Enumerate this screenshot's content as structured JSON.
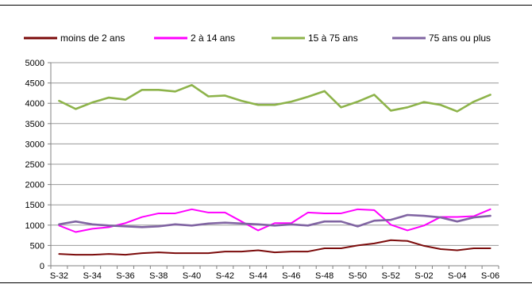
{
  "chart_data": {
    "type": "line",
    "x": [
      "S-32",
      "S-33",
      "S-34",
      "S-35",
      "S-36",
      "S-37",
      "S-38",
      "S-39",
      "S-40",
      "S-41",
      "S-42",
      "S-43",
      "S-44",
      "S-45",
      "S-46",
      "S-47",
      "S-48",
      "S-49",
      "S-50",
      "S-51",
      "S-52",
      "S-01",
      "S-02",
      "S-03",
      "S-04",
      "S-05",
      "S-06"
    ],
    "x_tick_labels": [
      "S-32",
      "S-34",
      "S-36",
      "S-38",
      "S-40",
      "S-42",
      "S-44",
      "S-46",
      "S-48",
      "S-50",
      "S-52",
      "S-02",
      "S-04",
      "S-06"
    ],
    "ylim": [
      0,
      5000
    ],
    "y_ticks": [
      0,
      500,
      1000,
      1500,
      2000,
      2500,
      3000,
      3500,
      4000,
      4500,
      5000
    ],
    "grid": true,
    "legend_position": "top",
    "series": [
      {
        "name": "moins de 2 ans",
        "color": "#7b0b0b",
        "values": [
          290,
          270,
          270,
          290,
          270,
          310,
          330,
          310,
          310,
          310,
          350,
          350,
          380,
          330,
          350,
          350,
          430,
          430,
          500,
          550,
          630,
          610,
          490,
          410,
          380,
          430,
          430
        ]
      },
      {
        "name": "2 à 14 ans",
        "color": "#ff00ff",
        "values": [
          990,
          830,
          910,
          950,
          1050,
          1200,
          1290,
          1290,
          1390,
          1310,
          1310,
          1090,
          870,
          1050,
          1050,
          1310,
          1290,
          1290,
          1390,
          1370,
          1010,
          870,
          990,
          1200,
          1200,
          1220,
          1390
        ]
      },
      {
        "name": "15 à 75 ans",
        "color": "#8db34a",
        "values": [
          4060,
          3860,
          4020,
          4140,
          4090,
          4330,
          4330,
          4290,
          4450,
          4170,
          4190,
          4060,
          3960,
          3960,
          4040,
          4160,
          4300,
          3900,
          4040,
          4210,
          3820,
          3900,
          4030,
          3960,
          3800,
          4040,
          4210
        ]
      },
      {
        "name": "75 ans ou plus",
        "color": "#8064a2",
        "values": [
          1020,
          1090,
          1020,
          990,
          970,
          950,
          970,
          1020,
          990,
          1040,
          1060,
          1040,
          1020,
          990,
          1020,
          990,
          1090,
          1090,
          970,
          1110,
          1130,
          1250,
          1230,
          1190,
          1090,
          1190,
          1230
        ]
      }
    ]
  }
}
